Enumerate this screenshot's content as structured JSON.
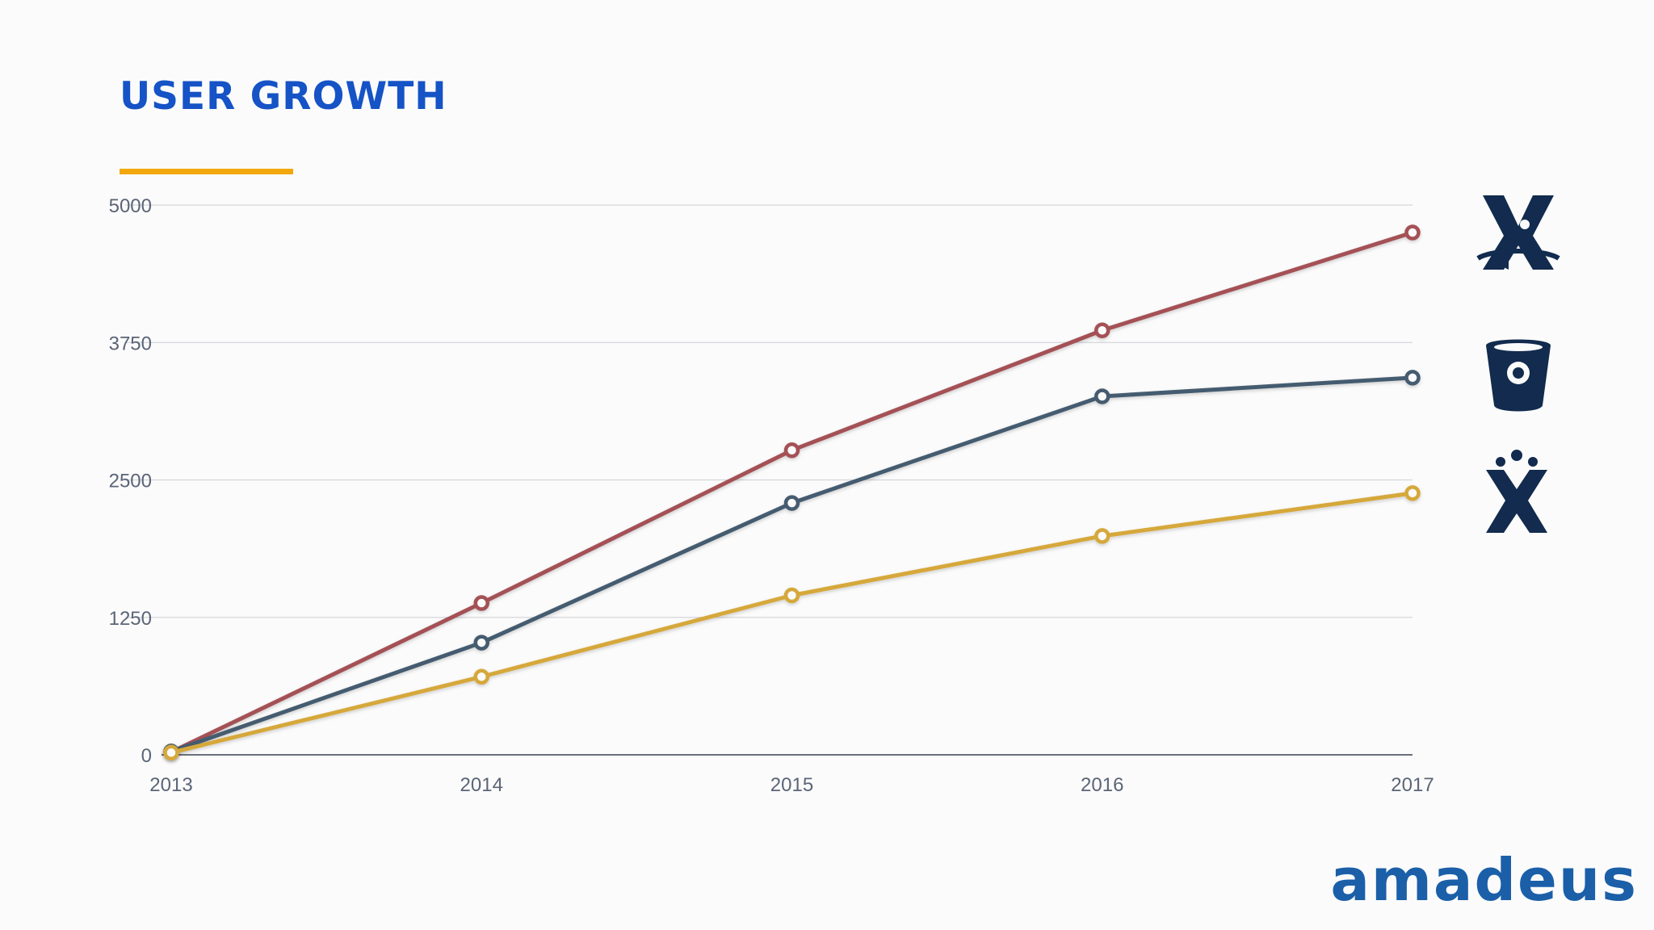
{
  "page": {
    "title": "USER GROWTH",
    "brand": "amadeus",
    "accent_color": "#f2a80c",
    "title_color": "#1553c6"
  },
  "legend_icons": [
    {
      "name": "jira-service-desk-icon",
      "series": "red"
    },
    {
      "name": "bitbucket-icon",
      "series": "blue"
    },
    {
      "name": "confluence-icon",
      "series": "yellow"
    }
  ],
  "chart_data": {
    "type": "line",
    "x": [
      "2013",
      "2014",
      "2015",
      "2016",
      "2017"
    ],
    "ylim": [
      0,
      5000
    ],
    "yticks": [
      "0",
      "1250",
      "2500",
      "3750",
      "5000"
    ],
    "grid": true,
    "series": [
      {
        "color": "#a45157",
        "values": [
          25,
          1380,
          2770,
          3860,
          4750
        ]
      },
      {
        "color": "#445b70",
        "values": [
          30,
          1020,
          2290,
          3260,
          3430
        ]
      },
      {
        "color": "#d6a83a",
        "values": [
          20,
          710,
          1450,
          1990,
          2380
        ]
      }
    ]
  }
}
